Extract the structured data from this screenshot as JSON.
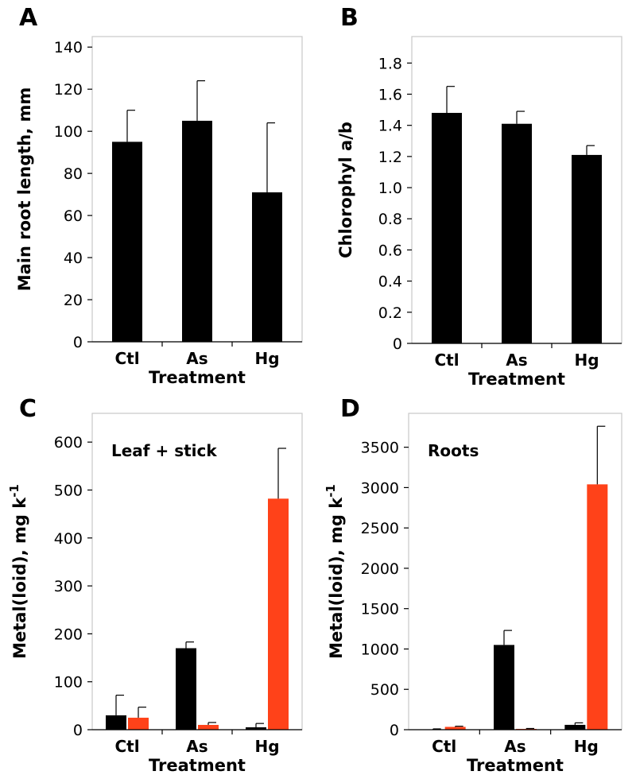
{
  "chart_data": [
    {
      "panel": "A",
      "type": "bar",
      "title": "",
      "annotation": "",
      "xlabel": "Treatment",
      "ylabel": "Main root length, mm",
      "categories": [
        "Ctl",
        "As",
        "Hg"
      ],
      "ylim": [
        0,
        145
      ],
      "yticks": [
        0,
        20,
        40,
        60,
        80,
        100,
        120,
        140
      ],
      "ytick_labels": [
        "0",
        "20",
        "40",
        "60",
        "80",
        "100",
        "120",
        "140"
      ],
      "series": [
        {
          "values": [
            95,
            105,
            71
          ],
          "errors": [
            15,
            19,
            33
          ],
          "color": "#000000"
        }
      ]
    },
    {
      "panel": "B",
      "type": "bar",
      "title": "",
      "annotation": "",
      "xlabel": "Treatment",
      "ylabel": "Chlorophyl a/b",
      "categories": [
        "Ctl",
        "As",
        "Hg"
      ],
      "ylim": [
        0,
        1.97
      ],
      "yticks": [
        0,
        0.2,
        0.4,
        0.6,
        0.8,
        1.0,
        1.2,
        1.4,
        1.6,
        1.8
      ],
      "ytick_labels": [
        "0",
        "0.2",
        "0.4",
        "0.6",
        "0.8",
        "1.0",
        "1.2",
        "1.4",
        "1.6",
        "1.8"
      ],
      "series": [
        {
          "values": [
            1.48,
            1.41,
            1.21
          ],
          "errors": [
            0.17,
            0.08,
            0.06
          ],
          "color": "#000000"
        }
      ]
    },
    {
      "panel": "C",
      "type": "bar",
      "title": "",
      "annotation": "Leaf + stick",
      "xlabel": "Treatment",
      "ylabel": "Metal(loid), mg k",
      "ylabel_sup": "-1",
      "categories": [
        "Ctl",
        "As",
        "Hg"
      ],
      "ylim": [
        0,
        660
      ],
      "yticks": [
        0,
        100,
        200,
        300,
        400,
        500,
        600
      ],
      "ytick_labels": [
        "0",
        "100",
        "200",
        "300",
        "400",
        "500",
        "600"
      ],
      "series": [
        {
          "values": [
            30,
            170,
            5
          ],
          "errors": [
            42,
            13,
            8
          ],
          "color": "#000000"
        },
        {
          "values": [
            25,
            10,
            482
          ],
          "errors": [
            22,
            5,
            105
          ],
          "color": "#ff4219"
        }
      ]
    },
    {
      "panel": "D",
      "type": "bar",
      "title": "",
      "annotation": "Roots",
      "xlabel": "Treatment",
      "ylabel": "Metal(loid), mg k",
      "ylabel_sup": "-1",
      "categories": [
        "Ctl",
        "As",
        "Hg"
      ],
      "ylim": [
        0,
        3920
      ],
      "yticks": [
        0,
        500,
        1000,
        1500,
        2000,
        2500,
        3000,
        3500
      ],
      "ytick_labels": [
        "0",
        "500",
        "1000",
        "1500",
        "2000",
        "2500",
        "3000",
        "3500"
      ],
      "series": [
        {
          "values": [
            5,
            1050,
            60
          ],
          "errors": [
            5,
            180,
            25
          ],
          "color": "#000000"
        },
        {
          "values": [
            35,
            10,
            3040
          ],
          "errors": [
            8,
            5,
            720
          ],
          "color": "#ff4219"
        }
      ]
    }
  ]
}
